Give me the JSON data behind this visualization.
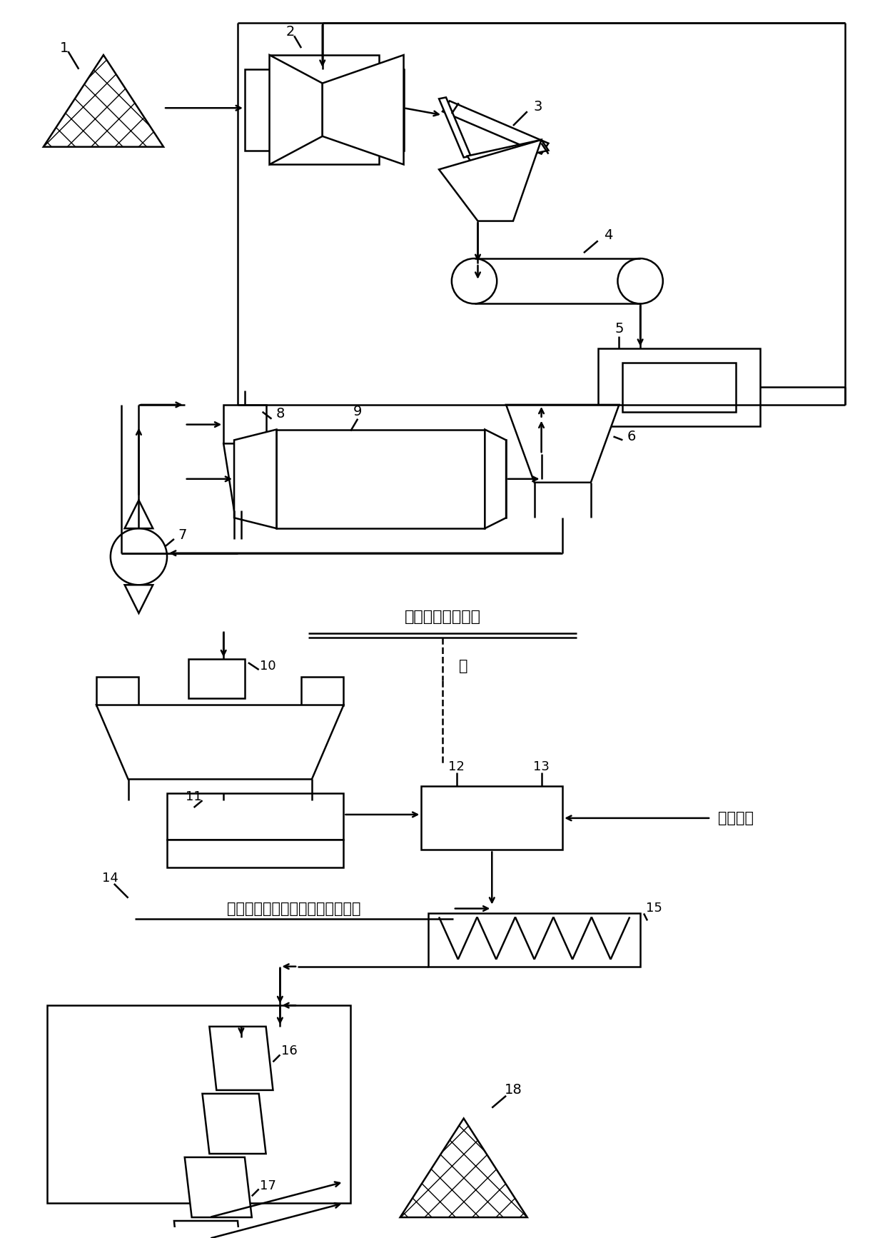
{
  "bg_color": "#ffffff",
  "line_color": "#000000",
  "fig_width": 12.4,
  "fig_height": 17.34,
  "annotation_text1": "去第一段磨矿分级",
  "annotation_text2": "水",
  "annotation_text3": "高温气体",
  "annotation_text4": "添加剂（还原剂、氯化剂、助剂）"
}
